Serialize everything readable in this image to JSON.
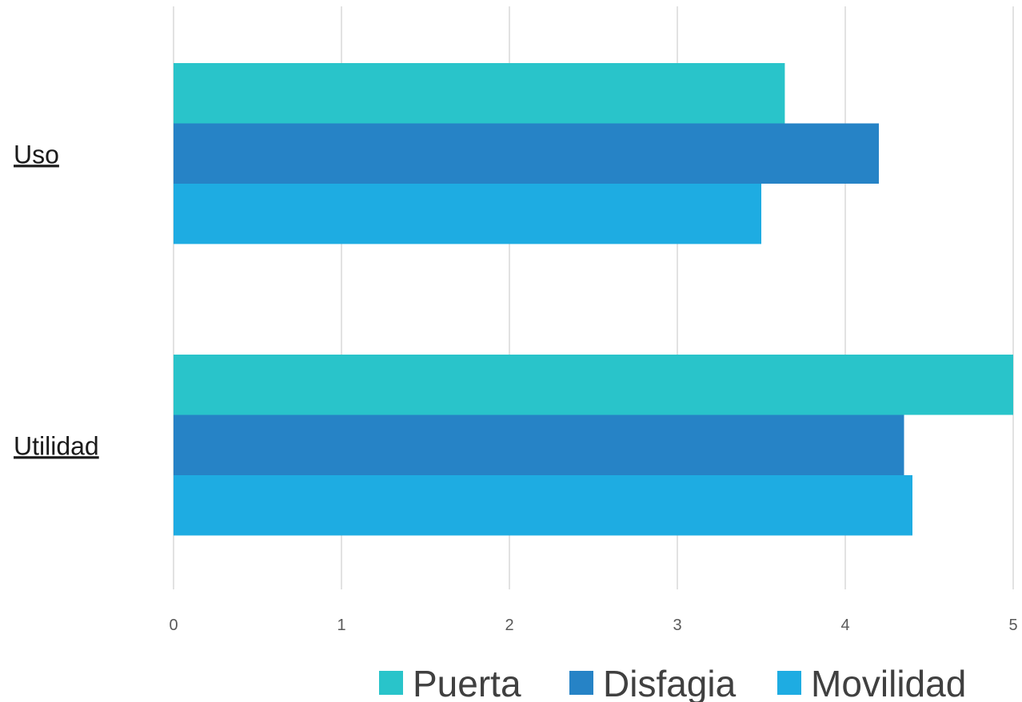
{
  "chart_data": {
    "type": "bar",
    "orientation": "horizontal",
    "categories": [
      "Uso",
      "Utilidad"
    ],
    "series": [
      {
        "name": "Puerta",
        "color": "#29C4CA",
        "values": [
          3.64,
          5.0
        ]
      },
      {
        "name": "Disfagia",
        "color": "#2683C6",
        "values": [
          4.2,
          4.35
        ]
      },
      {
        "name": "Movilidad",
        "color": "#1EACE2",
        "values": [
          3.5,
          4.4
        ]
      }
    ],
    "xlim": [
      0,
      5
    ],
    "xticks": [
      "0",
      "1",
      "2",
      "3",
      "4",
      "5"
    ],
    "grid": true,
    "legend_position": "bottom",
    "gridline_color": "#D9D9D9"
  }
}
